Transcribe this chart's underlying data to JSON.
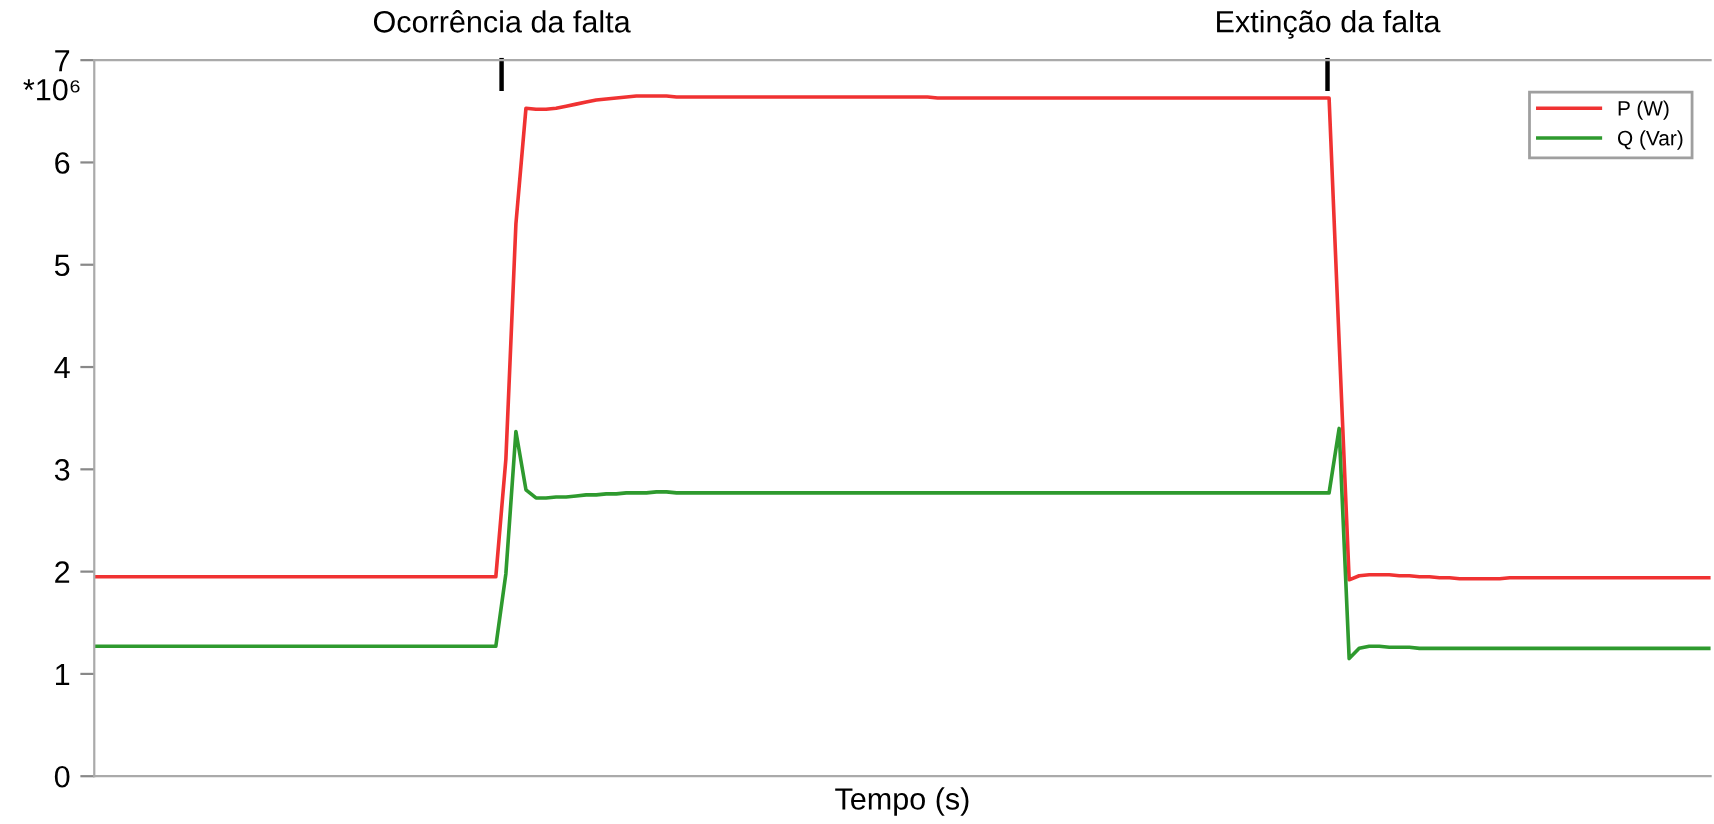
{
  "chart_data": {
    "type": "line",
    "xlabel": "Tempo (s)",
    "annotations": [
      "Ocorrência da falta",
      "Extinção da falta",
      "*10⁶"
    ],
    "categories": [
      null,
      null,
      null,
      null,
      null,
      null,
      null,
      null,
      null,
      null,
      null,
      null,
      null,
      null,
      null,
      null,
      null,
      null,
      null,
      null,
      null,
      null,
      null,
      null,
      null,
      null,
      null,
      null,
      null,
      null,
      null,
      null,
      null,
      null,
      null,
      null,
      null,
      null,
      null,
      null,
      null,
      null,
      null,
      null,
      null,
      null,
      null,
      null,
      null,
      null,
      null,
      null,
      null,
      null,
      null,
      null,
      null,
      null,
      null,
      null,
      null,
      null,
      null,
      null,
      null,
      null,
      null,
      null,
      null,
      null,
      null,
      null,
      null,
      null,
      null,
      null,
      null,
      null,
      null,
      null,
      null,
      null,
      null,
      null,
      null,
      null,
      null,
      null,
      null,
      null,
      null,
      null,
      null,
      null,
      null,
      null,
      null,
      null,
      null,
      null,
      null,
      null,
      null,
      null,
      null,
      null,
      null,
      null,
      null,
      null,
      null,
      null,
      null,
      null,
      null,
      null,
      null,
      null,
      null,
      null,
      null,
      null,
      null,
      null,
      null,
      null,
      null,
      null,
      null,
      null,
      null,
      null,
      null,
      null,
      null,
      null,
      null,
      null,
      null,
      null,
      null,
      null,
      null,
      null,
      null,
      null,
      null,
      null,
      null,
      null,
      null,
      null,
      null,
      null,
      null,
      null,
      null,
      null,
      null,
      null,
      null,
      null
    ],
    "series": [
      {
        "name": "P (W)",
        "color": "#f03232",
        "values": [
          1.95,
          1.95,
          1.95,
          1.95,
          1.95,
          1.95,
          1.95,
          1.95,
          1.95,
          1.95,
          1.95,
          1.95,
          1.95,
          1.95,
          1.95,
          1.95,
          1.95,
          1.95,
          1.95,
          1.95,
          1.95,
          1.95,
          1.95,
          1.95,
          1.95,
          1.95,
          1.95,
          1.95,
          1.95,
          1.95,
          1.95,
          1.95,
          1.95,
          1.95,
          1.95,
          1.95,
          1.95,
          1.95,
          1.95,
          1.95,
          1.95,
          3.1,
          5.4,
          6.53,
          6.52,
          6.52,
          6.53,
          6.55,
          6.57,
          6.59,
          6.61,
          6.62,
          6.63,
          6.64,
          6.65,
          6.65,
          6.65,
          6.65,
          6.64,
          6.64,
          6.64,
          6.64,
          6.64,
          6.64,
          6.64,
          6.64,
          6.64,
          6.64,
          6.64,
          6.64,
          6.64,
          6.64,
          6.64,
          6.64,
          6.64,
          6.64,
          6.64,
          6.64,
          6.64,
          6.64,
          6.64,
          6.64,
          6.64,
          6.64,
          6.63,
          6.63,
          6.63,
          6.63,
          6.63,
          6.63,
          6.63,
          6.63,
          6.63,
          6.63,
          6.63,
          6.63,
          6.63,
          6.63,
          6.63,
          6.63,
          6.63,
          6.63,
          6.63,
          6.63,
          6.63,
          6.63,
          6.63,
          6.63,
          6.63,
          6.63,
          6.63,
          6.63,
          6.63,
          6.63,
          6.63,
          6.63,
          6.63,
          6.63,
          6.63,
          6.63,
          6.63,
          6.63,
          6.63,
          6.63,
          4.25,
          1.92,
          1.96,
          1.97,
          1.97,
          1.97,
          1.96,
          1.96,
          1.95,
          1.95,
          1.94,
          1.94,
          1.93,
          1.93,
          1.93,
          1.93,
          1.93,
          1.94,
          1.94,
          1.94,
          1.94,
          1.94,
          1.94,
          1.94,
          1.94,
          1.94,
          1.94,
          1.94,
          1.94,
          1.94,
          1.94,
          1.94,
          1.94,
          1.94,
          1.94,
          1.94,
          1.94,
          1.94
        ]
      },
      {
        "name": "Q (Var)",
        "color": "#2e9a2e",
        "values": [
          1.27,
          1.27,
          1.27,
          1.27,
          1.27,
          1.27,
          1.27,
          1.27,
          1.27,
          1.27,
          1.27,
          1.27,
          1.27,
          1.27,
          1.27,
          1.27,
          1.27,
          1.27,
          1.27,
          1.27,
          1.27,
          1.27,
          1.27,
          1.27,
          1.27,
          1.27,
          1.27,
          1.27,
          1.27,
          1.27,
          1.27,
          1.27,
          1.27,
          1.27,
          1.27,
          1.27,
          1.27,
          1.27,
          1.27,
          1.27,
          1.27,
          1.98,
          3.37,
          2.8,
          2.72,
          2.72,
          2.73,
          2.73,
          2.74,
          2.75,
          2.75,
          2.76,
          2.76,
          2.77,
          2.77,
          2.77,
          2.78,
          2.78,
          2.77,
          2.77,
          2.77,
          2.77,
          2.77,
          2.77,
          2.77,
          2.77,
          2.77,
          2.77,
          2.77,
          2.77,
          2.77,
          2.77,
          2.77,
          2.77,
          2.77,
          2.77,
          2.77,
          2.77,
          2.77,
          2.77,
          2.77,
          2.77,
          2.77,
          2.77,
          2.77,
          2.77,
          2.77,
          2.77,
          2.77,
          2.77,
          2.77,
          2.77,
          2.77,
          2.77,
          2.77,
          2.77,
          2.77,
          2.77,
          2.77,
          2.77,
          2.77,
          2.77,
          2.77,
          2.77,
          2.77,
          2.77,
          2.77,
          2.77,
          2.77,
          2.77,
          2.77,
          2.77,
          2.77,
          2.77,
          2.77,
          2.77,
          2.77,
          2.77,
          2.77,
          2.77,
          2.77,
          2.77,
          2.77,
          2.77,
          3.4,
          1.15,
          1.25,
          1.27,
          1.27,
          1.26,
          1.26,
          1.26,
          1.25,
          1.25,
          1.25,
          1.25,
          1.25,
          1.25,
          1.25,
          1.25,
          1.25,
          1.25,
          1.25,
          1.25,
          1.25,
          1.25,
          1.25,
          1.25,
          1.25,
          1.25,
          1.25,
          1.25,
          1.25,
          1.25,
          1.25,
          1.25,
          1.25,
          1.25,
          1.25,
          1.25,
          1.25,
          1.25
        ]
      }
    ],
    "ylim": [
      0,
      7
    ],
    "yticks": [
      0,
      1,
      2,
      3,
      4,
      5,
      6,
      7
    ],
    "tick_labels": "y",
    "grid": false,
    "legend": "top right",
    "marker": "none",
    "line_style": "solid"
  }
}
